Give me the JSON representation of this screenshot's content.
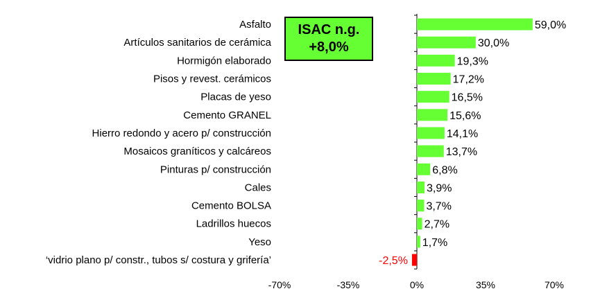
{
  "chart_data": {
    "type": "bar",
    "orientation": "horizontal",
    "categories": [
      "Asfalto",
      "Artículos sanitarios de cerámica",
      "Hormigón elaborado",
      "Pisos y revest. cerámicos",
      "Placas de yeso",
      "Cemento GRANEL",
      "Hierro redondo y acero p/ construcción",
      "Mosaicos graníticos y calcáreos",
      "Pinturas p/ construcción",
      "Cales",
      "Cemento BOLSA",
      "Ladrillos huecos",
      "Yeso",
      "‘vidrio plano p/ constr., tubos s/ costura y grifería’"
    ],
    "values": [
      59.0,
      30.0,
      19.3,
      17.2,
      16.5,
      15.6,
      14.1,
      13.7,
      6.8,
      3.9,
      3.7,
      2.7,
      1.7,
      -2.5
    ],
    "value_labels": [
      "59,0%",
      "30,0%",
      "19,3%",
      "17,2%",
      "16,5%",
      "15,6%",
      "14,1%",
      "13,7%",
      "6,8%",
      "3,9%",
      "3,7%",
      "2,7%",
      "1,7%",
      "-2,5%"
    ],
    "xlim": [
      -70,
      70
    ],
    "ticks": [
      -70,
      -35,
      0,
      35,
      70
    ],
    "tick_labels": [
      "-70%",
      "-35%",
      "0%",
      "35%",
      "70%"
    ],
    "grid": false,
    "legend": "none",
    "colors": {
      "positive": "#66ff33",
      "negative": "#ff0000",
      "negative_label": "#ff0000"
    }
  },
  "callout": {
    "line1": "ISAC n.g.",
    "line2": "+8,0%"
  }
}
